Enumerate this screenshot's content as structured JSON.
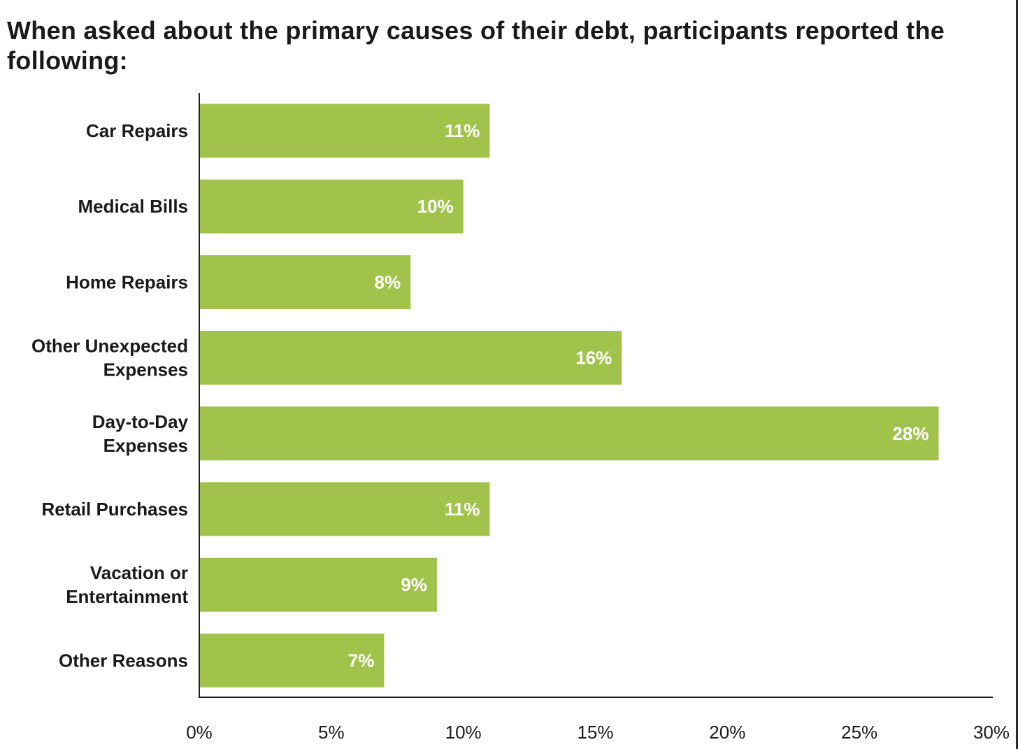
{
  "title": "When asked about the primary causes of their debt, participants reported the following:",
  "colors": {
    "bar": "#a1c24b",
    "axis": "#222222",
    "value_label": "#ffffff"
  },
  "chart_data": {
    "type": "bar",
    "orientation": "horizontal",
    "title": "When asked about the primary causes of their debt, participants reported the following:",
    "categories": [
      [
        "Car Repairs"
      ],
      [
        "Medical Bills"
      ],
      [
        "Home Repairs"
      ],
      [
        "Other Unexpected",
        "Expenses"
      ],
      [
        "Day-to-Day",
        "Expenses"
      ],
      [
        "Retail Purchases"
      ],
      [
        "Vacation or",
        "Entertainment"
      ],
      [
        "Other Reasons"
      ]
    ],
    "values": [
      11,
      10,
      8,
      16,
      28,
      11,
      9,
      7
    ],
    "value_labels": [
      "11%",
      "10%",
      "8%",
      "16%",
      "28%",
      "11%",
      "9%",
      "7%"
    ],
    "xlim": [
      0,
      30
    ],
    "x_ticks": [
      0,
      5,
      10,
      15,
      20,
      25,
      30
    ],
    "x_tick_labels": [
      "0%",
      "5%",
      "10%",
      "15%",
      "20%",
      "25%",
      "30%"
    ],
    "grid": false,
    "legend": "none"
  }
}
